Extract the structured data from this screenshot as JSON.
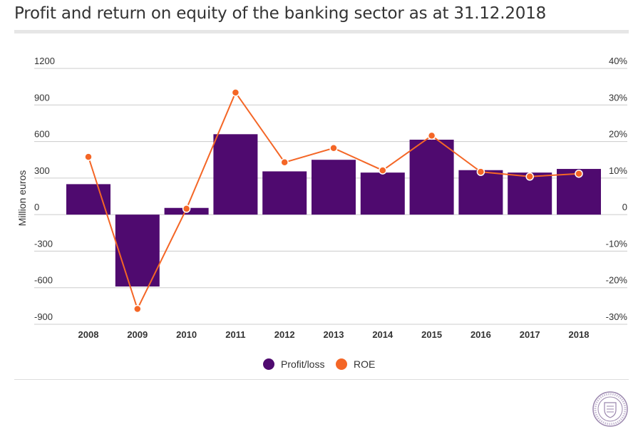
{
  "title": "Profit and return on equity of the banking sector as at 31.12.2018",
  "chart_data": {
    "type": "bar+line",
    "categories": [
      "2008",
      "2009",
      "2010",
      "2011",
      "2012",
      "2013",
      "2014",
      "2015",
      "2016",
      "2017",
      "2018"
    ],
    "series": [
      {
        "name": "Profit/loss",
        "type": "bar",
        "axis": "left",
        "color": "#4f0a6f",
        "values": [
          250,
          -590,
          55,
          660,
          355,
          450,
          345,
          615,
          365,
          345,
          375
        ]
      },
      {
        "name": "ROE",
        "type": "line",
        "axis": "right",
        "color": "#f46626",
        "values": [
          15.8,
          -25.8,
          1.6,
          33.4,
          14.3,
          18.2,
          12.1,
          21.6,
          11.7,
          10.4,
          11.2
        ]
      }
    ],
    "ylabel": "Million euros",
    "ylim": [
      -900,
      1200
    ],
    "yticks": [
      1200,
      900,
      600,
      300,
      0,
      -300,
      -600,
      -900
    ],
    "yticks_labels": [
      "1200",
      "900",
      "600",
      "300",
      "0",
      "-300",
      "-600",
      "-900"
    ],
    "y2lim": [
      -30,
      40
    ],
    "y2ticks": [
      40,
      30,
      20,
      10,
      0,
      -10,
      -20,
      -30
    ],
    "y2ticks_labels": [
      "40%",
      "30%",
      "20%",
      "10%",
      "0",
      "-10%",
      "-20%",
      "-30%"
    ],
    "grid": true,
    "legend": "bottom-center"
  }
}
